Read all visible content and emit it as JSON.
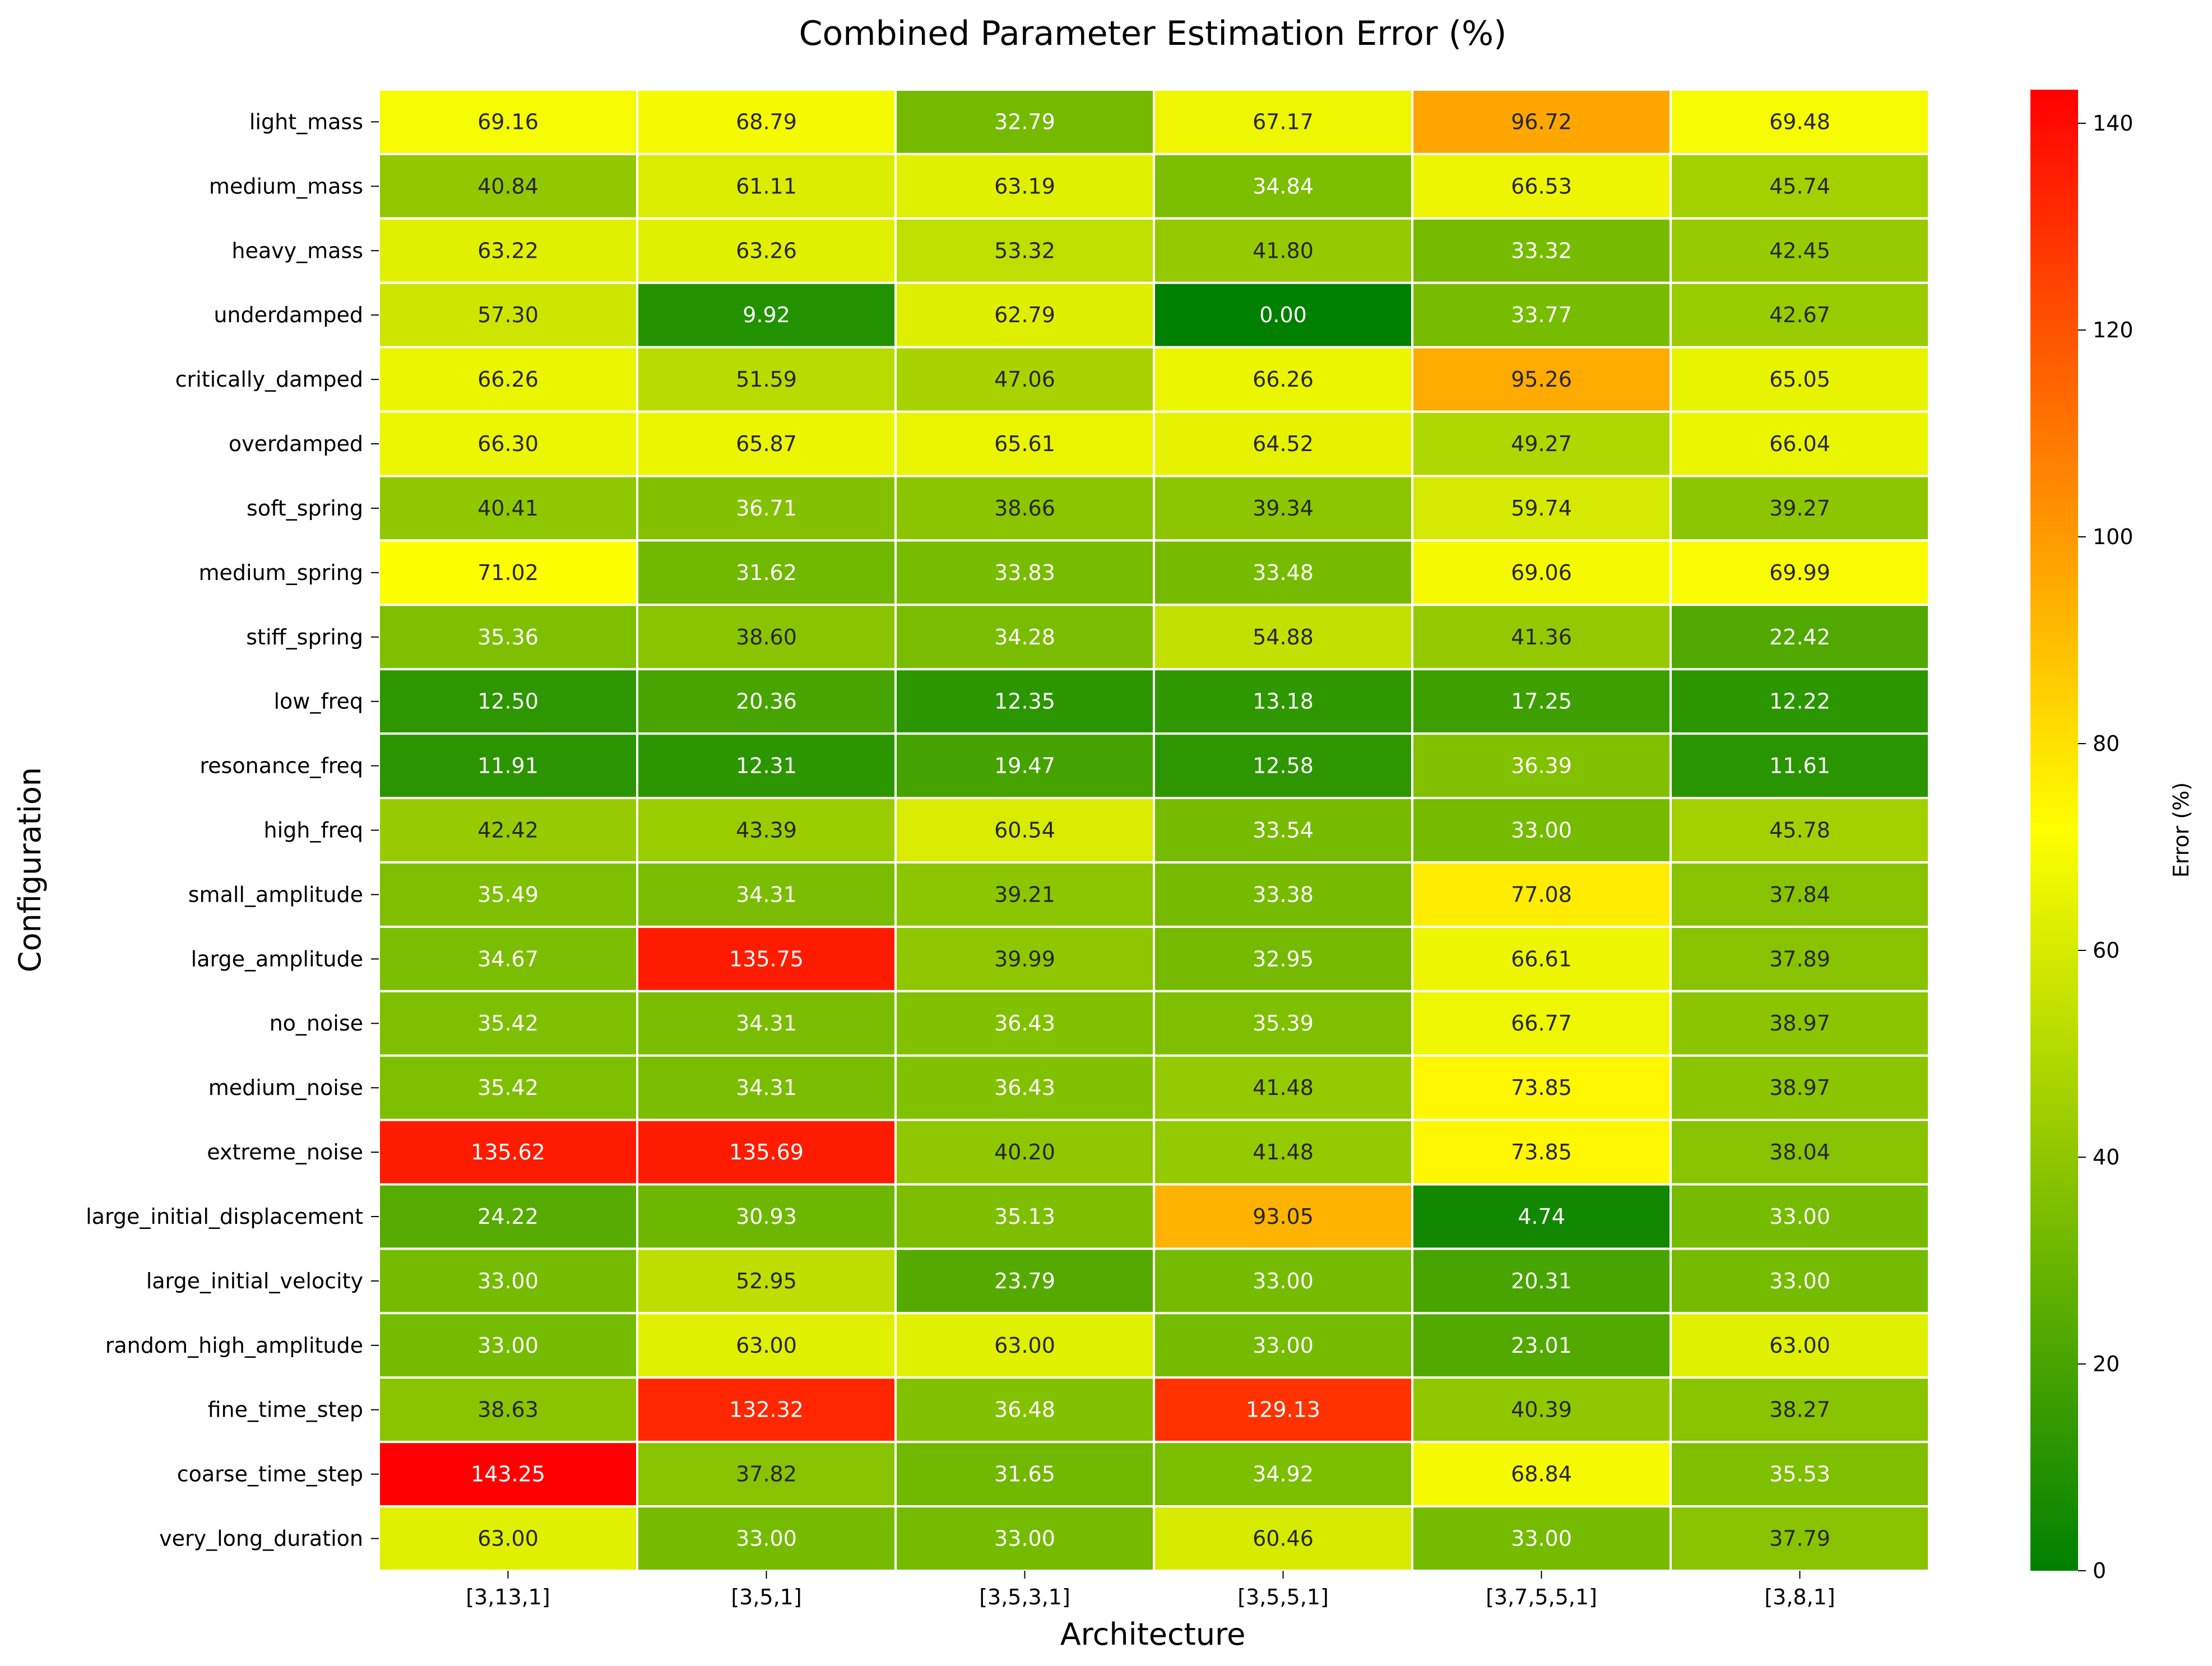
{
  "chart_data": {
    "type": "heatmap",
    "title": "Combined Parameter Estimation Error (%)",
    "xlabel": "Architecture",
    "ylabel": "Configuration",
    "colorbar_label": "Error (%)",
    "x_categories": [
      "[3,13,1]",
      "[3,5,1]",
      "[3,5,3,1]",
      "[3,5,5,1]",
      "[3,7,5,5,1]",
      "[3,8,1]"
    ],
    "y_categories": [
      "light_mass",
      "medium_mass",
      "heavy_mass",
      "underdamped",
      "critically_damped",
      "overdamped",
      "soft_spring",
      "medium_spring",
      "stiff_spring",
      "low_freq",
      "resonance_freq",
      "high_freq",
      "small_amplitude",
      "large_amplitude",
      "no_noise",
      "medium_noise",
      "extreme_noise",
      "large_initial_displacement",
      "large_initial_velocity",
      "random_high_amplitude",
      "fine_time_step",
      "coarse_time_step",
      "very_long_duration"
    ],
    "values": [
      [
        69.16,
        68.79,
        32.79,
        67.17,
        96.72,
        69.48
      ],
      [
        40.84,
        61.11,
        63.19,
        34.84,
        66.53,
        45.74
      ],
      [
        63.22,
        63.26,
        53.32,
        41.8,
        33.32,
        42.45
      ],
      [
        57.3,
        9.92,
        62.79,
        0.0,
        33.77,
        42.67
      ],
      [
        66.26,
        51.59,
        47.06,
        66.26,
        95.26,
        65.05
      ],
      [
        66.3,
        65.87,
        65.61,
        64.52,
        49.27,
        66.04
      ],
      [
        40.41,
        36.71,
        38.66,
        39.34,
        59.74,
        39.27
      ],
      [
        71.02,
        31.62,
        33.83,
        33.48,
        69.06,
        69.99
      ],
      [
        35.36,
        38.6,
        34.28,
        54.88,
        41.36,
        22.42
      ],
      [
        12.5,
        20.36,
        12.35,
        13.18,
        17.25,
        12.22
      ],
      [
        11.91,
        12.31,
        19.47,
        12.58,
        36.39,
        11.61
      ],
      [
        42.42,
        43.39,
        60.54,
        33.54,
        33.0,
        45.78
      ],
      [
        35.49,
        34.31,
        39.21,
        33.38,
        77.08,
        37.84
      ],
      [
        34.67,
        135.75,
        39.99,
        32.95,
        66.61,
        37.89
      ],
      [
        35.42,
        34.31,
        36.43,
        35.39,
        66.77,
        38.97
      ],
      [
        35.42,
        34.31,
        36.43,
        41.48,
        73.85,
        38.97
      ],
      [
        135.62,
        135.69,
        40.2,
        41.48,
        73.85,
        38.04
      ],
      [
        24.22,
        30.93,
        35.13,
        93.05,
        4.74,
        33.0
      ],
      [
        33.0,
        52.95,
        23.79,
        33.0,
        20.31,
        33.0
      ],
      [
        33.0,
        63.0,
        63.0,
        33.0,
        23.01,
        63.0
      ],
      [
        38.63,
        132.32,
        36.48,
        129.13,
        40.39,
        38.27
      ],
      [
        143.25,
        37.82,
        31.65,
        34.92,
        68.84,
        35.53
      ],
      [
        63.0,
        33.0,
        33.0,
        60.46,
        33.0,
        37.79
      ]
    ],
    "value_format": "2 decimals",
    "color_range": [
      0,
      143.25
    ],
    "colormap": [
      "#008000",
      "#ffff00",
      "#ff0000"
    ],
    "colorbar_ticks": [
      "0",
      "20",
      "40",
      "60",
      "80",
      "100",
      "120",
      "140"
    ]
  }
}
